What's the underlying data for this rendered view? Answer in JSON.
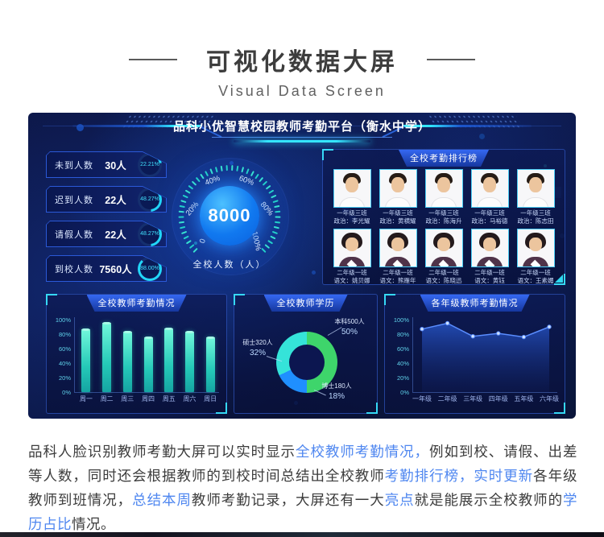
{
  "page": {
    "title_cn": "可视化数据大屏",
    "title_en": "Visual Data Screen"
  },
  "dashboard": {
    "title": "品科小优智慧校园教师考勤平台（衡水中学）",
    "stats": [
      {
        "label": "未到人数",
        "value": "30人",
        "pct": "22.21%",
        "pct_num": 22.21
      },
      {
        "label": "迟到人数",
        "value": "22人",
        "pct": "48.27%",
        "pct_num": 48.27
      },
      {
        "label": "请假人数",
        "value": "22人",
        "pct": "48.27%",
        "pct_num": 48.27
      },
      {
        "label": "到校人数",
        "value": "7560人",
        "pct": "88.00%",
        "pct_num": 88.0
      }
    ],
    "gauge": {
      "value": "8000",
      "label": "全校人数（人）",
      "ticks": [
        "0",
        "20%",
        "40%",
        "60%",
        "80%",
        "100%"
      ]
    },
    "ranking": {
      "title": "全校考勤排行榜",
      "rows": [
        {
          "avatar": "male",
          "cells": [
            {
              "class": "一年级三班",
              "teacher": "政治：李光耀"
            },
            {
              "class": "一年级三班",
              "teacher": "政治：黄横耀"
            },
            {
              "class": "一年级三班",
              "teacher": "政治：陈海升"
            },
            {
              "class": "一年级三班",
              "teacher": "政治：马裕德"
            },
            {
              "class": "一年级三班",
              "teacher": "政治：陈志田"
            }
          ]
        },
        {
          "avatar": "female",
          "cells": [
            {
              "class": "二年级一班",
              "teacher": "语文：姚贝娜"
            },
            {
              "class": "二年级一班",
              "teacher": "语文：熊雁年"
            },
            {
              "class": "二年级一班",
              "teacher": "语文：陈晓迅"
            },
            {
              "class": "二年级一班",
              "teacher": "语文：黄钰"
            },
            {
              "class": "二年级一班",
              "teacher": "语文：王素媚"
            }
          ]
        }
      ]
    }
  },
  "chart_data": [
    {
      "type": "bar",
      "title": "全校教师考勤情况",
      "categories": [
        "周一",
        "周二",
        "周三",
        "周四",
        "周五",
        "周六",
        "周日"
      ],
      "values": [
        88,
        97,
        85,
        77,
        89,
        85,
        77
      ],
      "yticks": [
        "0%",
        "20%",
        "40%",
        "60%",
        "80%",
        "100%"
      ],
      "ylim": [
        0,
        100
      ],
      "bar_color": "#2fd9c0"
    },
    {
      "type": "pie",
      "title": "全校教师学历",
      "slices": [
        {
          "label": "本科500人",
          "pct": "50%",
          "value": 50,
          "color": "#3ed56b"
        },
        {
          "label": "博士180人",
          "pct": "18%",
          "value": 18,
          "color": "#1f8fff"
        },
        {
          "label": "硕士320人",
          "pct": "32%",
          "value": 32,
          "color": "#35e3d9"
        }
      ]
    },
    {
      "type": "area",
      "title": "各年级教师考勤情况",
      "categories": [
        "一年级",
        "二年级",
        "三年级",
        "四年级",
        "五年级",
        "六年级"
      ],
      "values": [
        87,
        95,
        77,
        81,
        76,
        90
      ],
      "yticks": [
        "0%",
        "20%",
        "40%",
        "60%",
        "80%",
        "100%"
      ],
      "ylim": [
        0,
        100
      ],
      "line_color": "#5a8dff"
    }
  ],
  "description": {
    "segments": [
      {
        "text": "品科人脸识别教师考勤大屏可以实时显示",
        "hl": false
      },
      {
        "text": "全校教师考勤情况，",
        "hl": true
      },
      {
        "text": "例如到校、请假、出差等人数，同时还会根据教师的到校时间总结出全校教师",
        "hl": false
      },
      {
        "text": "考勤排行榜，实时更新",
        "hl": true
      },
      {
        "text": "各年级教师到班情况，",
        "hl": false
      },
      {
        "text": "总结本周",
        "hl": true
      },
      {
        "text": "教师考勤记录，大屏还有一大",
        "hl": false
      },
      {
        "text": "亮点",
        "hl": true
      },
      {
        "text": "就是能展示全校教师的",
        "hl": false
      },
      {
        "text": "学历占比",
        "hl": true
      },
      {
        "text": "情况。",
        "hl": false
      }
    ]
  }
}
